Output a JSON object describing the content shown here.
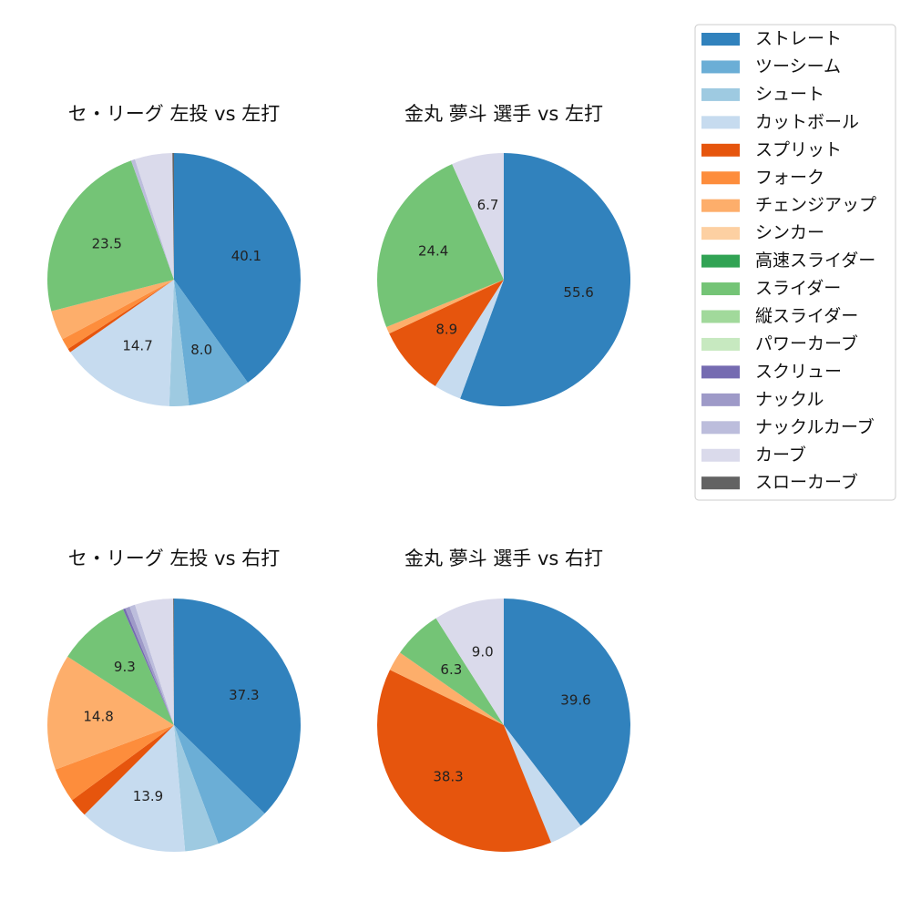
{
  "categories": [
    "ストレート",
    "ツーシーム",
    "シュート",
    "カットボール",
    "スプリット",
    "フォーク",
    "チェンジアップ",
    "シンカー",
    "高速スライダー",
    "スライダー",
    "縦スライダー",
    "パワーカーブ",
    "スクリュー",
    "ナックル",
    "ナックルカーブ",
    "カーブ",
    "スローカーブ"
  ],
  "colors": [
    "#3182bd",
    "#6baed6",
    "#9ecae1",
    "#c6dbef",
    "#e6550d",
    "#fd8d3c",
    "#fdae6b",
    "#fdd0a2",
    "#31a354",
    "#74c476",
    "#a1d99b",
    "#c7e9c0",
    "#756bb1",
    "#9e9ac8",
    "#bcbddc",
    "#dadaeb",
    "#636363"
  ],
  "chart_data": [
    {
      "type": "pie",
      "title": "セ・リーグ 左投 vs 左打",
      "values": [
        40.1,
        8.0,
        2.5,
        14.7,
        0.5,
        1.4,
        3.8,
        0,
        0,
        23.5,
        0,
        0,
        0,
        0,
        0.5,
        4.8,
        0.2
      ],
      "labels": [
        "40.1",
        "8.0",
        "",
        "14.7",
        "",
        "",
        "",
        "",
        "",
        "23.5",
        "",
        "",
        "",
        "",
        "",
        "",
        ""
      ]
    },
    {
      "type": "pie",
      "title": "金丸 夢斗 選手 vs 左打",
      "values": [
        55.6,
        0,
        0,
        3.5,
        8.9,
        0,
        0.9,
        0,
        0,
        24.4,
        0,
        0,
        0,
        0,
        0,
        6.7,
        0
      ],
      "labels": [
        "55.6",
        "",
        "",
        "",
        "8.9",
        "",
        "",
        "",
        "",
        "24.4",
        "",
        "",
        "",
        "",
        "",
        "6.7",
        ""
      ]
    },
    {
      "type": "pie",
      "title": "セ・リーグ 左投 vs 右打",
      "values": [
        37.3,
        7.0,
        4.3,
        13.9,
        2.4,
        4.4,
        14.8,
        0,
        0,
        9.3,
        0,
        0,
        0.3,
        0.6,
        0.7,
        4.9,
        0.1
      ],
      "labels": [
        "37.3",
        "",
        "",
        "13.9",
        "",
        "",
        "14.8",
        "",
        "",
        "9.3",
        "",
        "",
        "",
        "",
        "",
        "",
        ""
      ]
    },
    {
      "type": "pie",
      "title": "金丸 夢斗 選手 vs 右打",
      "values": [
        39.6,
        0,
        0,
        4.3,
        38.3,
        0,
        2.5,
        0,
        0,
        6.3,
        0,
        0,
        0,
        0,
        0,
        9.0,
        0
      ],
      "labels": [
        "39.6",
        "",
        "",
        "",
        "38.3",
        "",
        "",
        "",
        "",
        "6.3",
        "",
        "",
        "",
        "",
        "",
        "9.0",
        ""
      ]
    }
  ]
}
